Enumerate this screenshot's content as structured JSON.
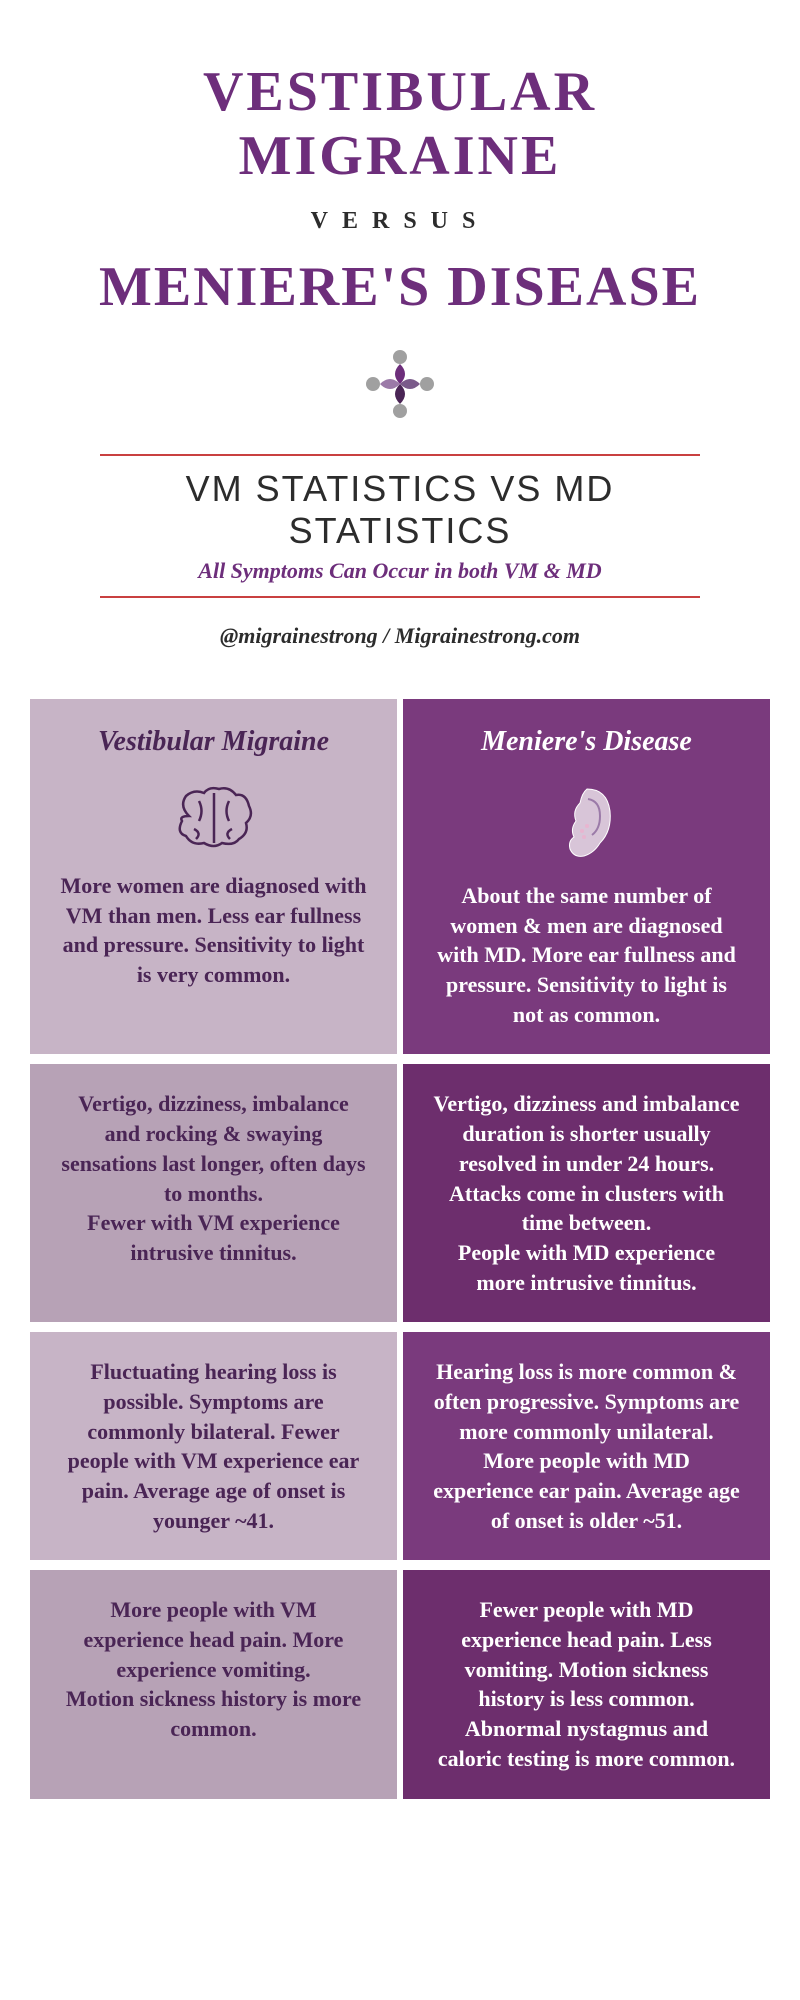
{
  "header": {
    "title1": "VESTIBULAR MIGRAINE",
    "versus": "VERSUS",
    "title2": "MENIERE'S DISEASE",
    "stats_title": "VM STATISTICS  VS  MD STATISTICS",
    "sub_note": "All Symptoms Can Occur in both VM & MD",
    "credit": "@migrainestrong / Migrainestrong.com"
  },
  "colors": {
    "primary_purple": "#6d2e7b",
    "light_purple": "#c7b4c6",
    "light_purple_alt": "#b7a2b6",
    "dark_purple": "#7a3a7d",
    "dark_purple_alt": "#6d2e6d",
    "divider_red": "#c94040",
    "text_dark": "#2c2c2c",
    "vm_text": "#4a2555",
    "md_text": "#ffffff"
  },
  "columns": {
    "left_header": "Vestibular Migraine",
    "right_header": "Meniere's Disease",
    "left_icon": "brain-icon",
    "right_icon": "ear-icon"
  },
  "rows": [
    {
      "left": "More women are diagnosed with VM than men.  Less ear fullness and pressure.  Sensitivity to light is very common.",
      "right": "About the same number of women & men are diagnosed with MD. More ear fullness and pressure.  Sensitivity to light is not as common."
    },
    {
      "left": "Vertigo, dizziness, imbalance and rocking & swaying sensations last longer, often days to months.\nFewer with VM experience intrusive tinnitus.",
      "right": "Vertigo, dizziness and imbalance duration is shorter usually resolved in under 24 hours. Attacks come in clusters with time between.\nPeople with MD experience more intrusive tinnitus."
    },
    {
      "left": "Fluctuating hearing loss is possible.  Symptoms are commonly bilateral.  Fewer people with VM experience ear pain.  Average age of onset is younger ~41.",
      "right": "Hearing loss is more common & often progressive.  Symptoms are more commonly unilateral.  More people with MD experience ear pain.  Average age of onset is older ~51."
    },
    {
      "left": "More people with VM experience head pain. More experience vomiting.\nMotion sickness history is more common.",
      "right": "Fewer people with MD experience head pain. Less vomiting.  Motion sickness history is less common.  Abnormal nystagmus and caloric testing is more common."
    }
  ]
}
